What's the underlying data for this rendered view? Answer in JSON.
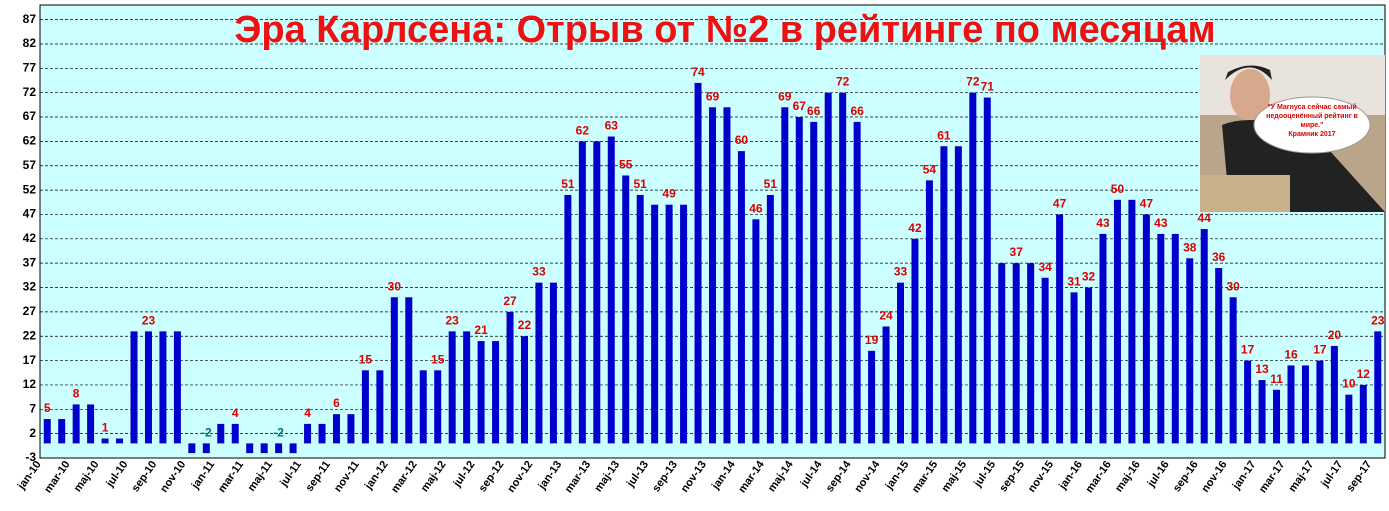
{
  "chart_data": {
    "type": "bar",
    "title": "Эра Карлсена: Отрыв от №2 в рейтинге по месяцам",
    "categories": [
      "jan-10",
      null,
      "mar-10",
      null,
      "maj-10",
      null,
      "jul-10",
      null,
      "sep-10",
      null,
      "nov-10",
      null,
      "jan-11",
      null,
      "mar-11",
      null,
      "maj-11",
      null,
      "jul-11",
      null,
      "sep-11",
      null,
      "nov-11",
      null,
      "jan-12",
      null,
      "mar-12",
      null,
      "maj-12",
      null,
      "jul-12",
      null,
      "sep-12",
      null,
      "nov-12",
      null,
      "jan-13",
      null,
      "mar-13",
      null,
      "maj-13",
      null,
      "jul-13",
      null,
      "sep-13",
      null,
      "nov-13",
      null,
      "jan-14",
      null,
      "mar-14",
      null,
      "maj-14",
      null,
      "jul-14",
      null,
      "sep-14",
      null,
      "nov-14",
      null,
      "jan-15",
      null,
      "mar-15",
      null,
      "maj-15",
      null,
      "jul-15",
      null,
      "sep-15",
      null,
      "nov-15",
      null,
      "jan-16",
      null,
      "mar-16",
      null,
      "maj-16",
      null,
      "jul-16",
      null,
      "sep-16",
      null,
      "nov-16",
      null,
      "jan-17",
      null,
      "mar-17",
      null,
      "maj-17",
      null,
      "jul-17",
      null,
      "sep-17"
    ],
    "values": [
      5,
      5,
      8,
      8,
      1,
      1,
      23,
      23,
      23,
      23,
      -2,
      -2,
      4,
      4,
      -2,
      -2,
      -2,
      -2,
      4,
      4,
      6,
      6,
      15,
      15,
      30,
      30,
      15,
      15,
      23,
      23,
      21,
      21,
      27,
      22,
      33,
      33,
      51,
      62,
      62,
      63,
      55,
      51,
      49,
      49,
      49,
      74,
      69,
      69,
      60,
      46,
      51,
      69,
      67,
      66,
      72,
      72,
      66,
      19,
      24,
      33,
      42,
      54,
      61,
      61,
      72,
      71,
      37,
      37,
      37,
      34,
      47,
      31,
      32,
      43,
      50,
      50,
      47,
      43,
      43,
      38,
      44,
      36,
      30,
      17,
      13,
      11,
      16,
      16,
      17,
      20,
      10,
      12,
      23
    ],
    "value_labels": [
      "5",
      null,
      "8",
      null,
      "1",
      null,
      null,
      "23",
      null,
      null,
      null,
      "-2",
      null,
      "4",
      null,
      null,
      "-2",
      null,
      "4",
      null,
      "6",
      null,
      "15",
      null,
      "30",
      null,
      null,
      "15",
      "23",
      null,
      "21",
      null,
      "27",
      "22",
      "33",
      null,
      "51",
      "62",
      null,
      "63",
      "55",
      "51",
      null,
      "49",
      null,
      "74",
      "69",
      null,
      "60",
      "46",
      "51",
      "69",
      "67",
      "66",
      null,
      "72",
      "66",
      "19",
      "24",
      "33",
      "42",
      "54",
      "61",
      null,
      "72",
      "71",
      null,
      "37",
      null,
      "34",
      "47",
      "31",
      "32",
      "43",
      "50",
      null,
      "47",
      "43",
      null,
      "38",
      "44",
      "36",
      "30",
      "17",
      "13",
      "11",
      "16",
      null,
      "17",
      "20",
      "10",
      "12",
      "23"
    ],
    "color": "#0000cc",
    "label_color": "#dd0000",
    "negative_label_color": "#007777",
    "ylim": [
      -3,
      90
    ],
    "yticks": [
      -3,
      2,
      7,
      12,
      17,
      22,
      27,
      32,
      37,
      42,
      47,
      52,
      57,
      62,
      67,
      72,
      77,
      82,
      87
    ],
    "grid": true,
    "inset_quote": "\"У Магнуса сейчас самый недооценённый рейтинг в мире.\"",
    "inset_author": "Крамник 2017"
  }
}
